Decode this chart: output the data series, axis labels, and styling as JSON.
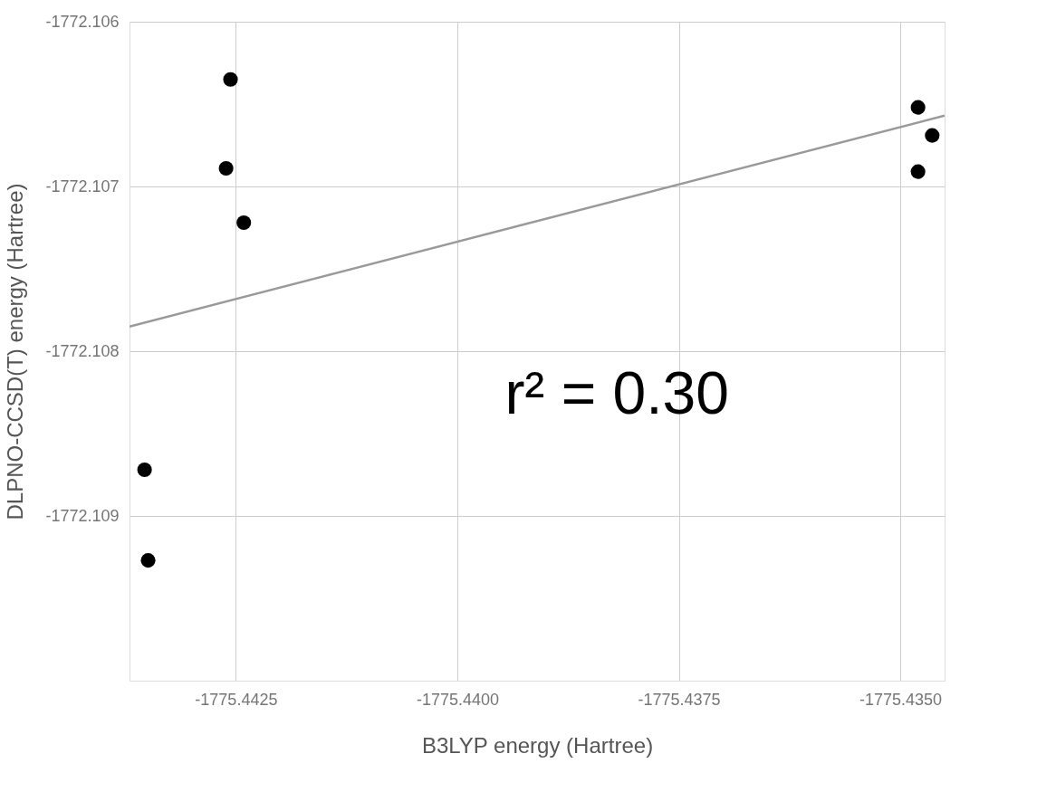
{
  "chart_data": {
    "type": "scatter",
    "xlabel": "B3LYP energy (Hartree)",
    "ylabel": "DLPNO-CCSD(T) energy (Hartree)",
    "annotations": [
      "r² = 0.30"
    ],
    "xlim": [
      -1775.4437,
      -1775.4345
    ],
    "ylim": [
      -1772.11,
      -1772.106
    ],
    "xticks": [
      {
        "value": -1775.4425,
        "label": "-1775.4425"
      },
      {
        "value": -1775.44,
        "label": "-1775.4400"
      },
      {
        "value": -1775.4375,
        "label": "-1775.4375"
      },
      {
        "value": -1775.435,
        "label": "-1775.4350"
      }
    ],
    "yticks": [
      -1772.106,
      -1772.107,
      -1772.108,
      -1772.109
    ],
    "grid": true,
    "marker": "circle",
    "series": [
      {
        "color": "#000000",
        "x": [
          -1775.44256,
          -1775.44261,
          -1775.44241,
          -1775.44353,
          -1775.44349,
          -1775.4348,
          -1775.43464,
          -1775.4348
        ],
        "values": [
          -1772.10635,
          -1772.10689,
          -1772.10722,
          -1772.10872,
          -1772.10927,
          -1772.10652,
          -1772.10669,
          -1772.10691
        ]
      },
      {
        "type": "line",
        "color": "#999999",
        "line_style": "solid",
        "marker": "none",
        "x": [
          -1775.4437,
          -1775.4345
        ],
        "values": [
          -1772.10785,
          -1772.10657
        ]
      }
    ]
  }
}
